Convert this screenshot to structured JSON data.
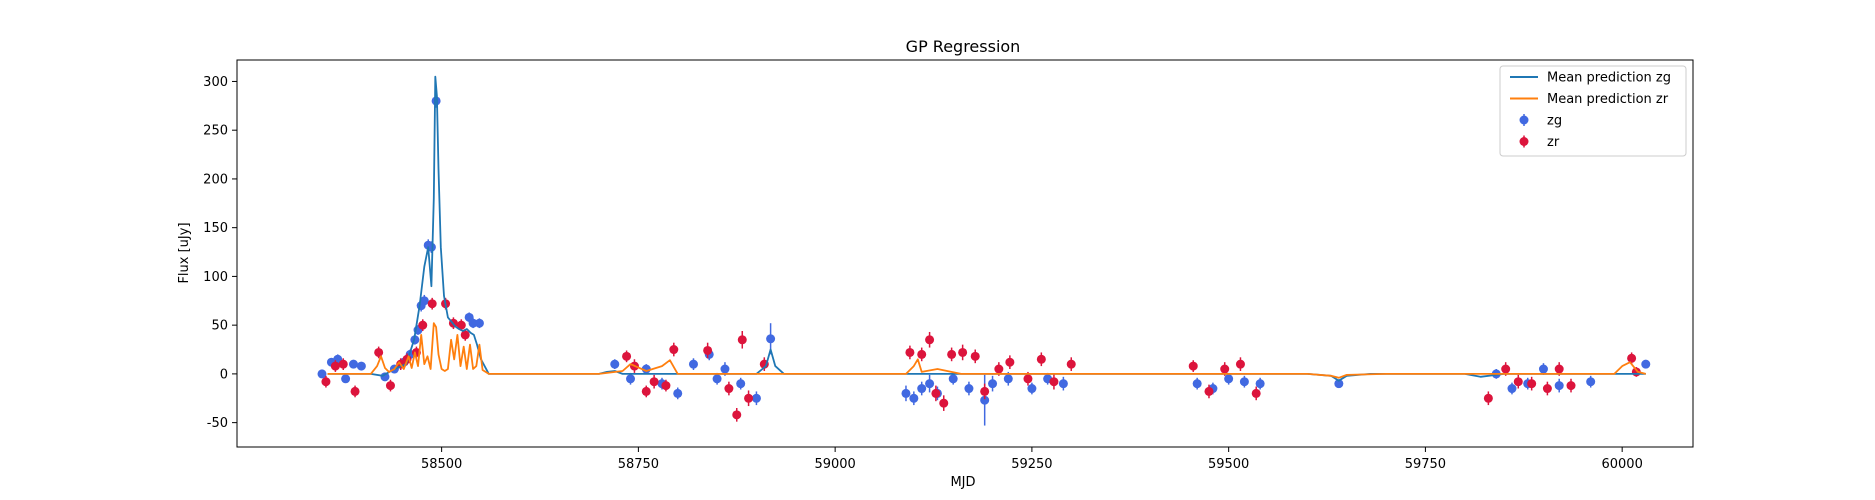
{
  "chart_data": {
    "type": "scatter",
    "title": "GP Regression",
    "xlabel": "MJD",
    "ylabel": "Flux [uJy]",
    "xlim": [
      58240,
      60090
    ],
    "ylim": [
      -75,
      322
    ],
    "xticks": [
      58500,
      58750,
      59000,
      59250,
      59500,
      59750,
      60000
    ],
    "yticks": [
      -50,
      0,
      50,
      100,
      150,
      200,
      250,
      300
    ],
    "legend_position": "top-right",
    "grid": false,
    "series": [
      {
        "name": "Mean prediction zg",
        "kind": "line",
        "color": "#1f77b4",
        "x": [
          58355,
          58370,
          58390,
          58410,
          58425,
          58440,
          58455,
          58465,
          58472,
          58478,
          58483,
          58487,
          58490,
          58492,
          58494,
          58496,
          58499,
          58503,
          58508,
          58513,
          58517,
          58522,
          58527,
          58532,
          58537,
          58541,
          58545,
          58550,
          58560,
          58580,
          58600,
          58650,
          58700,
          58710,
          58720,
          58730,
          58790,
          58850,
          58900,
          58912,
          58918,
          58924,
          58935,
          58960,
          59000,
          59050,
          59080,
          59100,
          59200,
          59300,
          59320,
          59400,
          59455,
          59500,
          59540,
          59560,
          59600,
          59630,
          59640,
          59650,
          59680,
          59750,
          59800,
          59820,
          59850,
          59900,
          59940,
          59960,
          59990,
          60000,
          60010,
          60030
        ],
        "y": [
          0,
          0,
          0,
          0,
          -2,
          5,
          10,
          35,
          70,
          110,
          130,
          90,
          180,
          305,
          285,
          210,
          130,
          80,
          58,
          53,
          49,
          46,
          44,
          46,
          42,
          40,
          30,
          15,
          0,
          0,
          0,
          0,
          0,
          2,
          3,
          0,
          0,
          0,
          0,
          8,
          25,
          8,
          0,
          0,
          0,
          0,
          0,
          0,
          0,
          0,
          0,
          0,
          0,
          0,
          0,
          0,
          0,
          -2,
          -7,
          -2,
          0,
          0,
          0,
          -3,
          0,
          0,
          0,
          0,
          0,
          0,
          0,
          0
        ]
      },
      {
        "name": "Mean prediction zr",
        "kind": "line",
        "color": "#ff7f0e",
        "x": [
          58355,
          58390,
          58410,
          58418,
          58423,
          58428,
          58433,
          58440,
          58446,
          58452,
          58458,
          58462,
          58466,
          58470,
          58474,
          58478,
          58482,
          58486,
          58490,
          58493,
          58496,
          58500,
          58504,
          58508,
          58512,
          58516,
          58520,
          58524,
          58528,
          58532,
          58536,
          58540,
          58544,
          58548,
          58552,
          58560,
          58600,
          58700,
          58730,
          58740,
          58760,
          58780,
          58790,
          58800,
          58830,
          58900,
          59000,
          59090,
          59100,
          59105,
          59110,
          59130,
          59160,
          59200,
          59250,
          59300,
          59400,
          59500,
          59600,
          59630,
          59640,
          59650,
          59700,
          59800,
          59900,
          59990,
          60000,
          60010,
          60020,
          60030
        ],
        "y": [
          0,
          0,
          0,
          8,
          18,
          6,
          2,
          5,
          12,
          5,
          18,
          6,
          22,
          8,
          40,
          10,
          18,
          5,
          52,
          48,
          20,
          5,
          3,
          5,
          35,
          15,
          40,
          8,
          28,
          5,
          30,
          5,
          8,
          30,
          4,
          0,
          0,
          0,
          3,
          10,
          3,
          8,
          14,
          0,
          0,
          0,
          0,
          0,
          8,
          15,
          2,
          5,
          0,
          0,
          0,
          0,
          0,
          0,
          0,
          -2,
          -4,
          -1,
          0,
          0,
          0,
          0,
          8,
          12,
          2,
          0
        ]
      },
      {
        "name": "zg",
        "kind": "errorbar",
        "color": "#4169e1",
        "x": [
          58348,
          58360,
          58368,
          58378,
          58388,
          58398,
          58428,
          58440,
          58452,
          58460,
          58466,
          58470,
          58474,
          58478,
          58483,
          58487,
          58493,
          58535,
          58540,
          58548,
          58720,
          58740,
          58760,
          58780,
          58800,
          58820,
          58840,
          58850,
          58860,
          58880,
          58900,
          58918,
          59090,
          59100,
          59110,
          59120,
          59130,
          59150,
          59170,
          59190,
          59200,
          59220,
          59250,
          59270,
          59290,
          59460,
          59480,
          59500,
          59520,
          59540,
          59640,
          59840,
          59860,
          59880,
          59900,
          59920,
          59960,
          60030
        ],
        "y": [
          0,
          12,
          15,
          -5,
          10,
          8,
          -3,
          5,
          12,
          20,
          35,
          45,
          70,
          75,
          132,
          130,
          280,
          58,
          52,
          52,
          10,
          -5,
          5,
          -10,
          -20,
          10,
          20,
          -5,
          5,
          -10,
          -25,
          36,
          -20,
          -25,
          -15,
          -10,
          -20,
          -5,
          -15,
          -27,
          -10,
          -5,
          -15,
          -5,
          -10,
          -10,
          -15,
          -5,
          -8,
          -10,
          -10,
          0,
          -15,
          -10,
          5,
          -12,
          -8,
          10
        ],
        "err": [
          3,
          4,
          5,
          4,
          4,
          4,
          3,
          4,
          4,
          5,
          5,
          5,
          6,
          6,
          6,
          6,
          7,
          5,
          5,
          5,
          5,
          6,
          5,
          6,
          6,
          6,
          6,
          6,
          7,
          6,
          7,
          16,
          8,
          7,
          7,
          9,
          7,
          6,
          7,
          26,
          8,
          7,
          6,
          6,
          7,
          6,
          6,
          6,
          6,
          6,
          4,
          5,
          6,
          6,
          6,
          7,
          6,
          4
        ]
      },
      {
        "name": "zr",
        "kind": "errorbar",
        "color": "#dc143c",
        "x": [
          58353,
          58365,
          58375,
          58390,
          58420,
          58435,
          58448,
          58456,
          58468,
          58476,
          58488,
          58505,
          58515,
          58525,
          58530,
          58735,
          58745,
          58760,
          58770,
          58785,
          58795,
          58838,
          58865,
          58875,
          58882,
          58890,
          58910,
          59095,
          59110,
          59120,
          59128,
          59138,
          59148,
          59162,
          59178,
          59190,
          59208,
          59222,
          59245,
          59262,
          59278,
          59300,
          59455,
          59475,
          59495,
          59515,
          59535,
          59830,
          59852,
          59868,
          59885,
          59905,
          59920,
          59935,
          60012,
          60018
        ],
        "y": [
          -8,
          8,
          10,
          -18,
          22,
          -12,
          10,
          15,
          22,
          50,
          72,
          72,
          52,
          50,
          40,
          18,
          8,
          -18,
          -8,
          -12,
          25,
          24,
          -15,
          -42,
          35,
          -25,
          10,
          22,
          20,
          35,
          -20,
          -30,
          20,
          22,
          18,
          -18,
          5,
          12,
          -5,
          15,
          -8,
          10,
          8,
          -18,
          5,
          10,
          -20,
          -25,
          5,
          -8,
          -10,
          -15,
          5,
          -12,
          16,
          2
        ],
        "err": [
          6,
          6,
          6,
          6,
          6,
          6,
          6,
          6,
          6,
          6,
          6,
          6,
          6,
          6,
          6,
          6,
          7,
          6,
          7,
          6,
          7,
          8,
          7,
          7,
          9,
          8,
          7,
          7,
          7,
          8,
          8,
          8,
          7,
          8,
          7,
          8,
          7,
          7,
          7,
          7,
          8,
          7,
          6,
          7,
          7,
          7,
          7,
          7,
          7,
          7,
          7,
          7,
          7,
          7,
          6,
          5
        ]
      }
    ]
  }
}
